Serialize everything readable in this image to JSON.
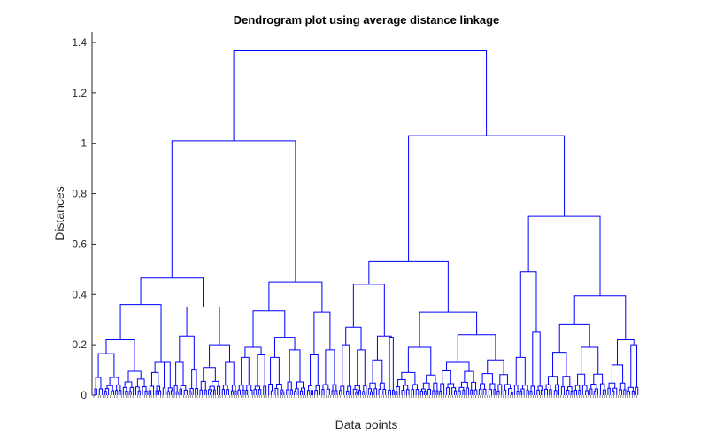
{
  "chart_data": {
    "type": "dendrogram",
    "title": "Dendrogram plot using average distance linkage",
    "xlabel": "Data points",
    "ylabel": "Distances",
    "ylim": [
      0,
      1.45
    ],
    "yticks": [
      "0",
      "0.2",
      "0.4",
      "0.6",
      "0.8",
      "1",
      "1.2",
      "1.4"
    ],
    "grid": false,
    "line_color": "#0000ff",
    "leaf_labels": "dense overlapping numeric leaf indices (illegible)",
    "merge_heights": {
      "root": 1.37,
      "left_cluster": 1.01,
      "right_cluster": 1.03,
      "left_a": 0.465,
      "left_b": 0.45,
      "right_a": 0.53,
      "right_b": 0.71,
      "subclusters": [
        0.36,
        0.35,
        0.335,
        0.33,
        0.44,
        0.33,
        0.49,
        0.395,
        0.28,
        0.22,
        0.2,
        0.235,
        0.19,
        0.23,
        0.24,
        0.26,
        0.22
      ]
    }
  }
}
